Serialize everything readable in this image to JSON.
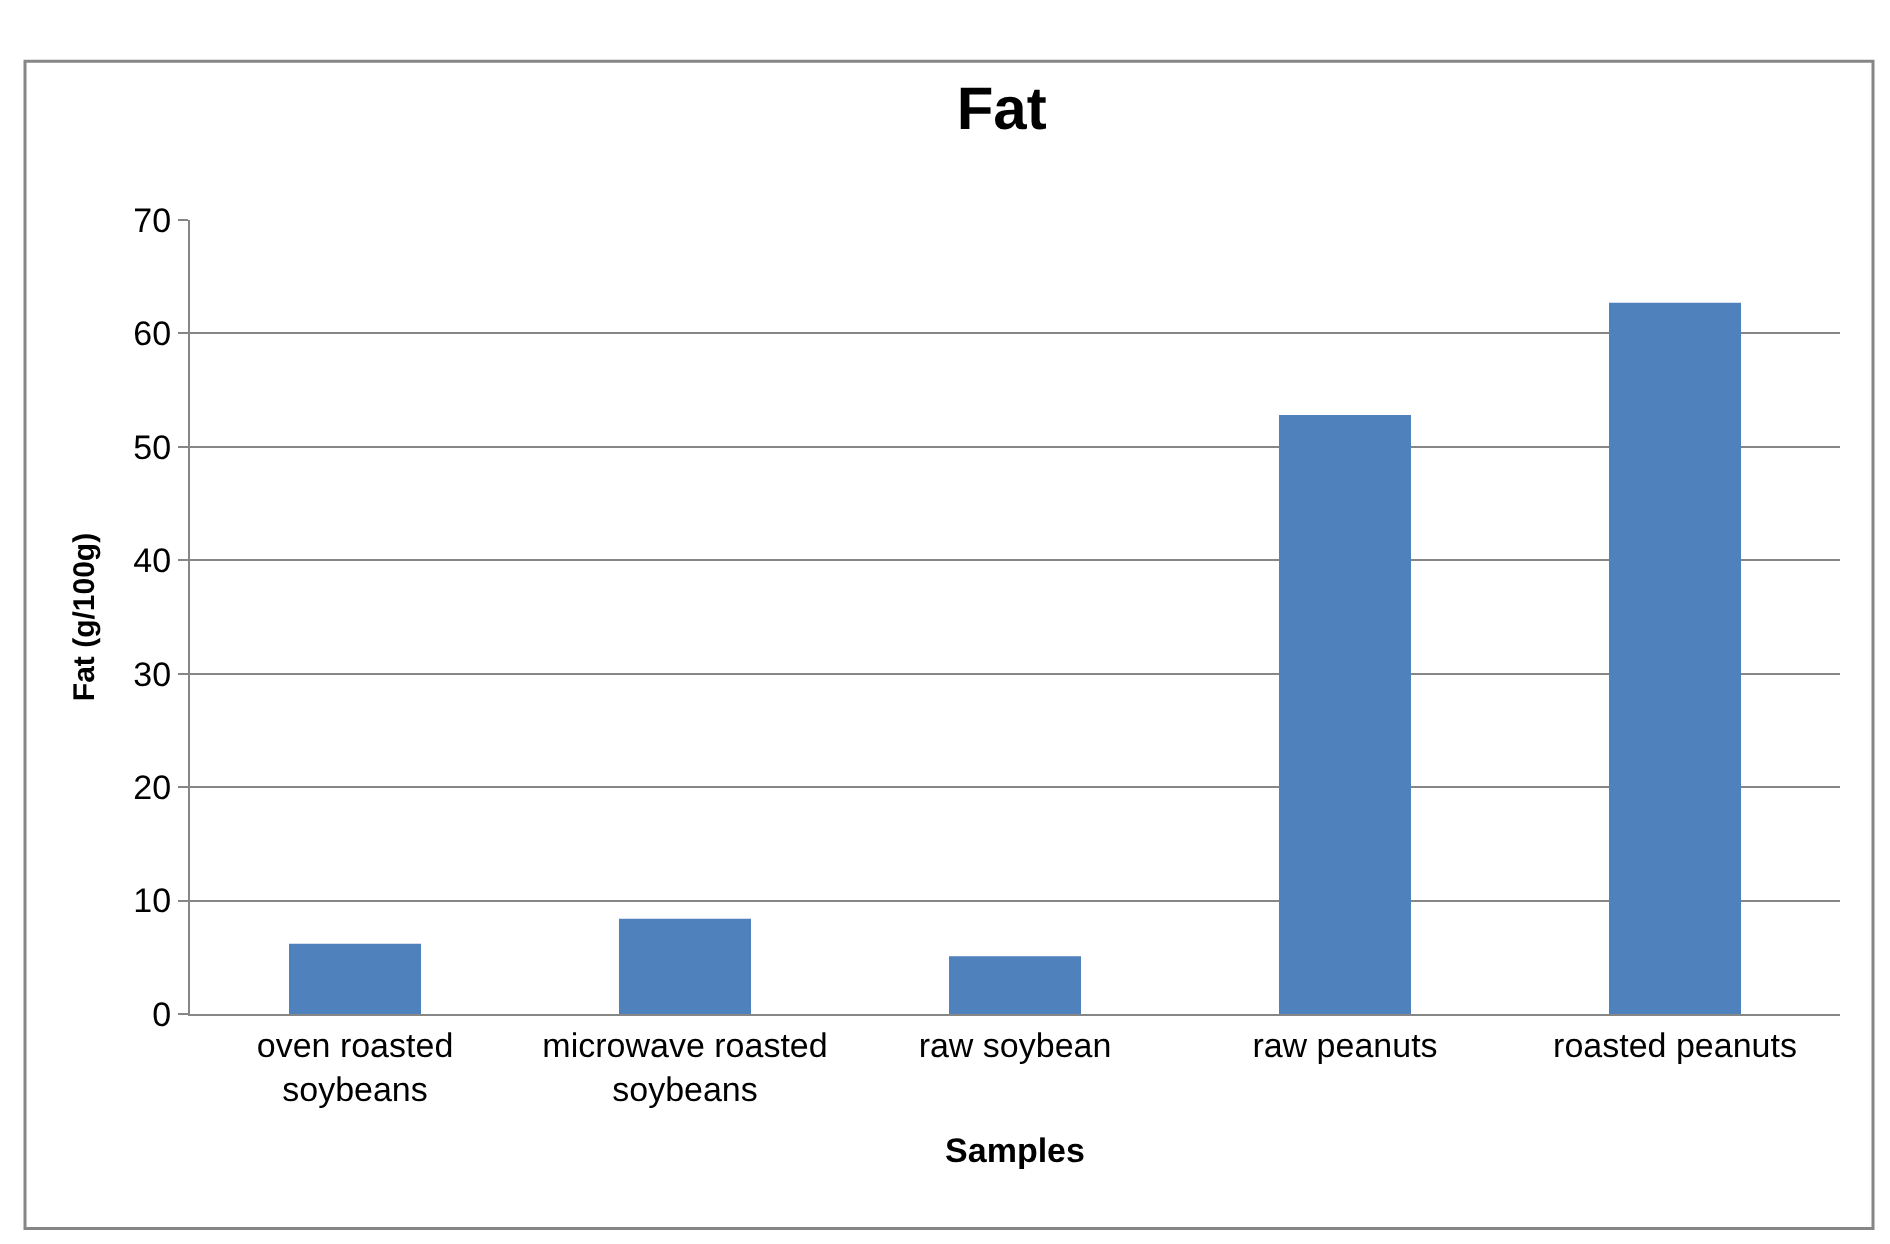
{
  "chart_data": {
    "type": "bar",
    "title": "Fat",
    "xlabel": "Samples",
    "ylabel": "Fat (g/100g)",
    "categories": [
      "oven roasted soybeans",
      "microwave roasted soybeans",
      "raw soybean",
      "raw peanuts",
      "roasted peanuts"
    ],
    "values": [
      6.2,
      8.4,
      5.1,
      52.8,
      62.7
    ],
    "color": "#4f81bd",
    "ylim": [
      0,
      70
    ],
    "yticks": [
      0,
      10,
      20,
      30,
      40,
      50,
      60,
      70
    ],
    "grid": "y"
  }
}
